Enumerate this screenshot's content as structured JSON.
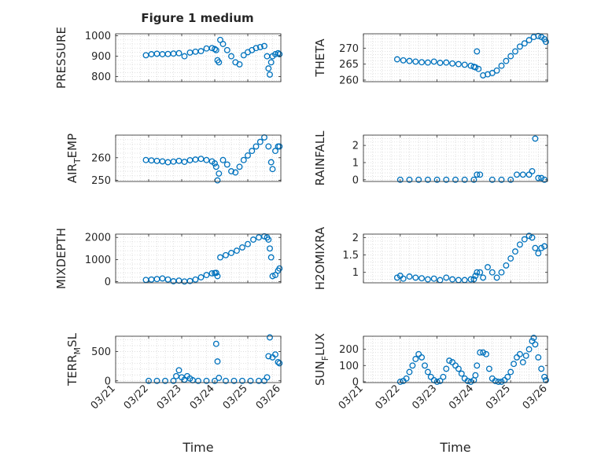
{
  "figure_title": "Figure 1 medium",
  "colors": {
    "marker": "#0072BD",
    "grid": "#d9d9d9",
    "axis": "#262626"
  },
  "chart_data": [
    {
      "type": "scatter",
      "id": "pressure",
      "title": "Figure 1 medium",
      "ylabel": {
        "main": "PRESSURE",
        "sub": "",
        "tail": ""
      },
      "xlabel": "",
      "xlim": [
        "03/21",
        "03/26"
      ],
      "ylim": [
        775,
        1010
      ],
      "yticks": [
        800,
        900,
        1000
      ],
      "xticklabels": [],
      "grid": true,
      "x": [
        "03/21 22:00",
        "03/22 02:00",
        "03/22 06:00",
        "03/22 10:00",
        "03/22 14:00",
        "03/22 18:00",
        "03/22 22:00",
        "03/23 02:00",
        "03/23 06:00",
        "03/23 10:00",
        "03/23 14:00",
        "03/23 18:00",
        "03/23 22:00",
        "03/24 00:00",
        "03/24 01:00",
        "03/24 02:00",
        "03/24 03:00",
        "03/24 04:00",
        "03/24 06:00",
        "03/24 09:00",
        "03/24 12:00",
        "03/24 15:00",
        "03/24 18:00",
        "03/24 21:00",
        "03/25 00:00",
        "03/25 03:00",
        "03/25 06:00",
        "03/25 09:00",
        "03/25 12:00",
        "03/25 14:00",
        "03/25 15:00",
        "03/25 16:00",
        "03/25 17:00",
        "03/25 18:00",
        "03/25 20:00",
        "03/25 22:00",
        "03/25 23:00"
      ],
      "y": [
        905,
        910,
        912,
        910,
        911,
        913,
        915,
        900,
        918,
        922,
        925,
        938,
        940,
        935,
        930,
        880,
        870,
        980,
        960,
        930,
        900,
        870,
        860,
        905,
        920,
        930,
        940,
        945,
        950,
        900,
        840,
        810,
        870,
        900,
        910,
        915,
        910
      ]
    },
    {
      "type": "scatter",
      "id": "theta",
      "title": "",
      "ylabel": {
        "main": "THETA",
        "sub": "",
        "tail": ""
      },
      "xlabel": "",
      "xlim": [
        "03/21",
        "03/26"
      ],
      "ylim": [
        259.5,
        274.5
      ],
      "yticks": [
        260,
        265,
        270
      ],
      "xticklabels": [],
      "grid": true,
      "x": [
        "03/21 22:00",
        "03/22 02:00",
        "03/22 06:00",
        "03/22 10:00",
        "03/22 14:00",
        "03/22 18:00",
        "03/22 22:00",
        "03/23 02:00",
        "03/23 06:00",
        "03/23 10:00",
        "03/23 14:00",
        "03/23 18:00",
        "03/23 22:00",
        "03/24 00:00",
        "03/24 01:00",
        "03/24 02:00",
        "03/24 03:00",
        "03/24 06:00",
        "03/24 09:00",
        "03/24 12:00",
        "03/24 15:00",
        "03/24 18:00",
        "03/24 21:00",
        "03/25 00:00",
        "03/25 03:00",
        "03/25 06:00",
        "03/25 09:00",
        "03/25 12:00",
        "03/25 15:00",
        "03/25 18:00",
        "03/25 20:00",
        "03/25 22:00",
        "03/25 23:00"
      ],
      "y": [
        266.5,
        266.2,
        266,
        265.8,
        265.6,
        265.5,
        265.8,
        265.4,
        265.5,
        265.2,
        265,
        264.8,
        264.5,
        264.2,
        264,
        269,
        263.5,
        261.5,
        261.8,
        262.2,
        263,
        264.5,
        266,
        267.5,
        269,
        270.5,
        271.5,
        272.5,
        273.5,
        273.8,
        273.5,
        272.8,
        272
      ]
    },
    {
      "type": "scatter",
      "id": "air_temp",
      "title": "",
      "ylabel": {
        "main": "AIR",
        "sub": "T",
        "tail": "EMP"
      },
      "xlabel": "",
      "xlim": [
        "03/21",
        "03/26"
      ],
      "ylim": [
        249.5,
        270
      ],
      "yticks": [
        250,
        260
      ],
      "xticklabels": [],
      "grid": true,
      "x": [
        "03/21 22:00",
        "03/22 02:00",
        "03/22 06:00",
        "03/22 10:00",
        "03/22 14:00",
        "03/22 18:00",
        "03/22 22:00",
        "03/23 02:00",
        "03/23 06:00",
        "03/23 10:00",
        "03/23 14:00",
        "03/23 18:00",
        "03/23 22:00",
        "03/24 00:00",
        "03/24 01:00",
        "03/24 02:00",
        "03/24 03:00",
        "03/24 06:00",
        "03/24 09:00",
        "03/24 12:00",
        "03/24 15:00",
        "03/24 18:00",
        "03/24 21:00",
        "03/25 00:00",
        "03/25 03:00",
        "03/25 06:00",
        "03/25 09:00",
        "03/25 12:00",
        "03/25 15:00",
        "03/25 17:00",
        "03/25 18:00",
        "03/25 20:00",
        "03/25 22:00",
        "03/25 23:00"
      ],
      "y": [
        259,
        258.8,
        258.6,
        258.4,
        258,
        258.3,
        258.6,
        258.2,
        258.9,
        259.2,
        259.5,
        259,
        258.4,
        257.5,
        256,
        250,
        253,
        259,
        257,
        254,
        253.5,
        256,
        259,
        261,
        263,
        265,
        267,
        269,
        265,
        258,
        255,
        263,
        265,
        265
      ]
    },
    {
      "type": "scatter",
      "id": "rainfall",
      "title": "",
      "ylabel": {
        "main": "RAINFALL",
        "sub": "",
        "tail": ""
      },
      "xlabel": "",
      "xlim": [
        "03/21",
        "03/26"
      ],
      "ylim": [
        -0.1,
        2.6
      ],
      "yticks": [
        0,
        1,
        2
      ],
      "xticklabels": [],
      "grid": true,
      "x": [
        "03/22 00:00",
        "03/22 06:00",
        "03/22 12:00",
        "03/22 18:00",
        "03/23 00:00",
        "03/23 06:00",
        "03/23 12:00",
        "03/23 18:00",
        "03/24 00:00",
        "03/24 02:00",
        "03/24 04:00",
        "03/24 12:00",
        "03/24 18:00",
        "03/25 00:00",
        "03/25 04:00",
        "03/25 08:00",
        "03/25 12:00",
        "03/25 14:00",
        "03/25 16:00",
        "03/25 18:00",
        "03/25 20:00",
        "03/25 22:00"
      ],
      "y": [
        0,
        0,
        0,
        0,
        0,
        0,
        0,
        0,
        0,
        0.3,
        0.3,
        0,
        0,
        0,
        0.3,
        0.3,
        0.3,
        0.5,
        2.4,
        0.1,
        0.1,
        0
      ]
    },
    {
      "type": "scatter",
      "id": "mixdepth",
      "title": "",
      "ylabel": {
        "main": "MIXDEPTH",
        "sub": "",
        "tail": ""
      },
      "xlabel": "",
      "xlim": [
        "03/21",
        "03/26"
      ],
      "ylim": [
        -50,
        2150
      ],
      "yticks": [
        0,
        1000,
        2000
      ],
      "xticklabels": [],
      "grid": true,
      "x": [
        "03/21 22:00",
        "03/22 02:00",
        "03/22 06:00",
        "03/22 10:00",
        "03/22 14:00",
        "03/22 18:00",
        "03/22 22:00",
        "03/23 02:00",
        "03/23 06:00",
        "03/23 10:00",
        "03/23 14:00",
        "03/23 18:00",
        "03/23 22:00",
        "03/24 00:00",
        "03/24 01:00",
        "03/24 02:00",
        "03/24 04:00",
        "03/24 08:00",
        "03/24 12:00",
        "03/24 16:00",
        "03/24 20:00",
        "03/25 00:00",
        "03/25 04:00",
        "03/25 08:00",
        "03/25 12:00",
        "03/25 14:00",
        "03/25 15:00",
        "03/25 16:00",
        "03/25 17:00",
        "03/25 18:00",
        "03/25 20:00",
        "03/25 22:00",
        "03/25 23:00"
      ],
      "y": [
        80,
        100,
        120,
        150,
        100,
        20,
        50,
        10,
        30,
        100,
        200,
        300,
        380,
        390,
        400,
        250,
        1100,
        1200,
        1300,
        1400,
        1550,
        1700,
        1900,
        2000,
        2050,
        2000,
        1900,
        1500,
        1100,
        250,
        300,
        500,
        600
      ]
    },
    {
      "type": "scatter",
      "id": "h2omixra",
      "title": "",
      "ylabel": {
        "main": "H2OMIXRA",
        "sub": "",
        "tail": ""
      },
      "xlabel": "",
      "xlim": [
        "03/21",
        "03/26"
      ],
      "ylim": [
        0.7,
        2.1
      ],
      "yticks": [
        1,
        1.5,
        2
      ],
      "xticklabels": [],
      "grid": true,
      "x": [
        "03/21 22:00",
        "03/22 00:00",
        "03/22 02:00",
        "03/22 06:00",
        "03/22 10:00",
        "03/22 14:00",
        "03/22 18:00",
        "03/22 22:00",
        "03/23 02:00",
        "03/23 06:00",
        "03/23 10:00",
        "03/23 14:00",
        "03/23 18:00",
        "03/23 22:00",
        "03/24 00:00",
        "03/24 01:00",
        "03/24 02:00",
        "03/24 04:00",
        "03/24 06:00",
        "03/24 09:00",
        "03/24 12:00",
        "03/24 15:00",
        "03/24 18:00",
        "03/24 21:00",
        "03/25 00:00",
        "03/25 03:00",
        "03/25 06:00",
        "03/25 09:00",
        "03/25 12:00",
        "03/25 14:00",
        "03/25 16:00",
        "03/25 18:00",
        "03/25 20:00",
        "03/25 22:00"
      ],
      "y": [
        0.85,
        0.9,
        0.82,
        0.88,
        0.85,
        0.83,
        0.8,
        0.82,
        0.78,
        0.85,
        0.8,
        0.78,
        0.78,
        0.8,
        0.8,
        0.9,
        1.0,
        1.0,
        0.85,
        1.15,
        1.0,
        0.85,
        1.0,
        1.2,
        1.4,
        1.6,
        1.8,
        1.95,
        2.05,
        2.0,
        1.7,
        1.55,
        1.7,
        1.75
      ]
    },
    {
      "type": "scatter",
      "id": "terr_msl",
      "title": "",
      "ylabel": {
        "main": "TERR",
        "sub": "M",
        "tail": "SL"
      },
      "xlabel": "Time",
      "xlim": [
        "03/21",
        "03/26"
      ],
      "ylim": [
        -30,
        760
      ],
      "yticks": [
        0,
        500
      ],
      "xticklabels": [
        "03/21",
        "03/22",
        "03/23",
        "03/24",
        "03/25",
        "03/26"
      ],
      "grid": true,
      "x": [
        "03/22 00:00",
        "03/22 06:00",
        "03/22 12:00",
        "03/22 18:00",
        "03/22 20:00",
        "03/22 22:00",
        "03/23 00:00",
        "03/23 02:00",
        "03/23 04:00",
        "03/23 06:00",
        "03/23 08:00",
        "03/23 12:00",
        "03/23 18:00",
        "03/24 00:00",
        "03/24 01:00",
        "03/24 02:00",
        "03/24 03:00",
        "03/24 08:00",
        "03/24 14:00",
        "03/24 20:00",
        "03/25 02:00",
        "03/25 08:00",
        "03/25 12:00",
        "03/25 14:00",
        "03/25 15:00",
        "03/25 16:00",
        "03/25 18:00",
        "03/25 20:00",
        "03/25 22:00",
        "03/25 23:00"
      ],
      "y": [
        0,
        0,
        0,
        0,
        80,
        180,
        60,
        20,
        80,
        40,
        10,
        0,
        0,
        0,
        630,
        330,
        50,
        0,
        0,
        0,
        0,
        0,
        0,
        60,
        420,
        740,
        400,
        450,
        320,
        300
      ]
    },
    {
      "type": "scatter",
      "id": "sun_flux",
      "title": "",
      "ylabel": {
        "main": "SUN",
        "sub": "F",
        "tail": "LUX"
      },
      "xlabel": "Time",
      "xlim": [
        "03/21",
        "03/26"
      ],
      "ylim": [
        -5,
        280
      ],
      "yticks": [
        0,
        100,
        200
      ],
      "xticklabels": [
        "03/21",
        "03/22",
        "03/23",
        "03/24",
        "03/25",
        "03/26"
      ],
      "grid": true,
      "x": [
        "03/22 00:00",
        "03/22 02:00",
        "03/22 04:00",
        "03/22 06:00",
        "03/22 08:00",
        "03/22 10:00",
        "03/22 12:00",
        "03/22 14:00",
        "03/22 16:00",
        "03/22 18:00",
        "03/22 20:00",
        "03/22 22:00",
        "03/23 00:00",
        "03/23 02:00",
        "03/23 04:00",
        "03/23 06:00",
        "03/23 08:00",
        "03/23 10:00",
        "03/23 12:00",
        "03/23 14:00",
        "03/23 16:00",
        "03/23 18:00",
        "03/23 20:00",
        "03/23 22:00",
        "03/24 00:00",
        "03/24 01:00",
        "03/24 02:00",
        "03/24 04:00",
        "03/24 06:00",
        "03/24 08:00",
        "03/24 10:00",
        "03/24 12:00",
        "03/24 14:00",
        "03/24 16:00",
        "03/24 18:00",
        "03/24 20:00",
        "03/24 22:00",
        "03/25 00:00",
        "03/25 02:00",
        "03/25 04:00",
        "03/25 06:00",
        "03/25 08:00",
        "03/25 10:00",
        "03/25 12:00",
        "03/25 14:00",
        "03/25 15:00",
        "03/25 16:00",
        "03/25 18:00",
        "03/25 20:00",
        "03/25 22:00",
        "03/25 23:00"
      ],
      "y": [
        0,
        5,
        20,
        60,
        100,
        140,
        170,
        150,
        100,
        60,
        30,
        10,
        0,
        5,
        30,
        80,
        130,
        120,
        100,
        80,
        50,
        20,
        5,
        0,
        10,
        40,
        100,
        180,
        180,
        170,
        80,
        20,
        5,
        0,
        0,
        10,
        30,
        60,
        110,
        150,
        170,
        120,
        160,
        200,
        250,
        270,
        230,
        150,
        80,
        30,
        10
      ]
    }
  ]
}
